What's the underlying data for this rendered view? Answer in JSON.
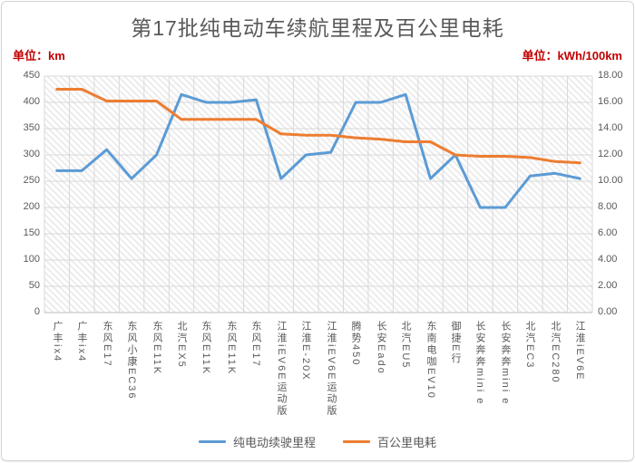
{
  "title": "第17批纯电动车续航里程及百公里电耗",
  "left_unit": "单位：km",
  "right_unit": "单位：kWh/100km",
  "colors": {
    "range_line": "#5b9bd5",
    "consumption_line": "#ed7d31",
    "unit_text": "#c00000",
    "title_text": "#595959",
    "grid": "#d9d9d9",
    "axis_line": "#bfbfbf",
    "tick_text": "#595959"
  },
  "chart_data": {
    "type": "line",
    "title": "第17批纯电动车续航里程及百公里电耗",
    "grid": true,
    "legend_position": "bottom",
    "plot_background": "diagonal-hatch",
    "categories": [
      "广丰ix4",
      "广丰ix4",
      "东风E17",
      "东风小康EC36",
      "东风E11K",
      "北汽EX5",
      "东风E11K",
      "东风E11K",
      "东风E17",
      "江淮iEV6E运动版",
      "江淮E-20X",
      "江淮iEV6E运动版",
      "腾势450",
      "长安Eado",
      "北汽EU5",
      "东南电咖EV10",
      "御捷E行",
      "长安奔奔mini e",
      "长安奔奔mini e",
      "北汽EC3",
      "北汽EC280",
      "江淮iEV6E"
    ],
    "series": [
      {
        "name": "纯电动续驶里程",
        "axis": "left",
        "unit": "km",
        "color": "#5b9bd5",
        "values": [
          270,
          270,
          310,
          255,
          300,
          415,
          400,
          400,
          405,
          255,
          300,
          305,
          400,
          400,
          415,
          255,
          300,
          200,
          200,
          260,
          265,
          255
        ]
      },
      {
        "name": "百公里电耗",
        "axis": "right",
        "unit": "kWh/100km",
        "color": "#ed7d31",
        "values": [
          17.0,
          17.0,
          16.1,
          16.1,
          16.1,
          14.7,
          14.7,
          14.7,
          14.7,
          13.6,
          13.5,
          13.5,
          13.3,
          13.2,
          13.0,
          13.0,
          12.0,
          11.9,
          11.9,
          11.8,
          11.5,
          11.4
        ]
      }
    ],
    "left_axis": {
      "min": 0,
      "max": 450,
      "step": 50,
      "ticks": [
        "450",
        "400",
        "350",
        "300",
        "250",
        "200",
        "150",
        "100",
        "50",
        "0"
      ]
    },
    "right_axis": {
      "min": 0,
      "max": 18,
      "step": 2,
      "ticks": [
        "18.00",
        "16.00",
        "14.00",
        "12.00",
        "10.00",
        "8.00",
        "6.00",
        "4.00",
        "2.00",
        "0.00"
      ]
    }
  }
}
